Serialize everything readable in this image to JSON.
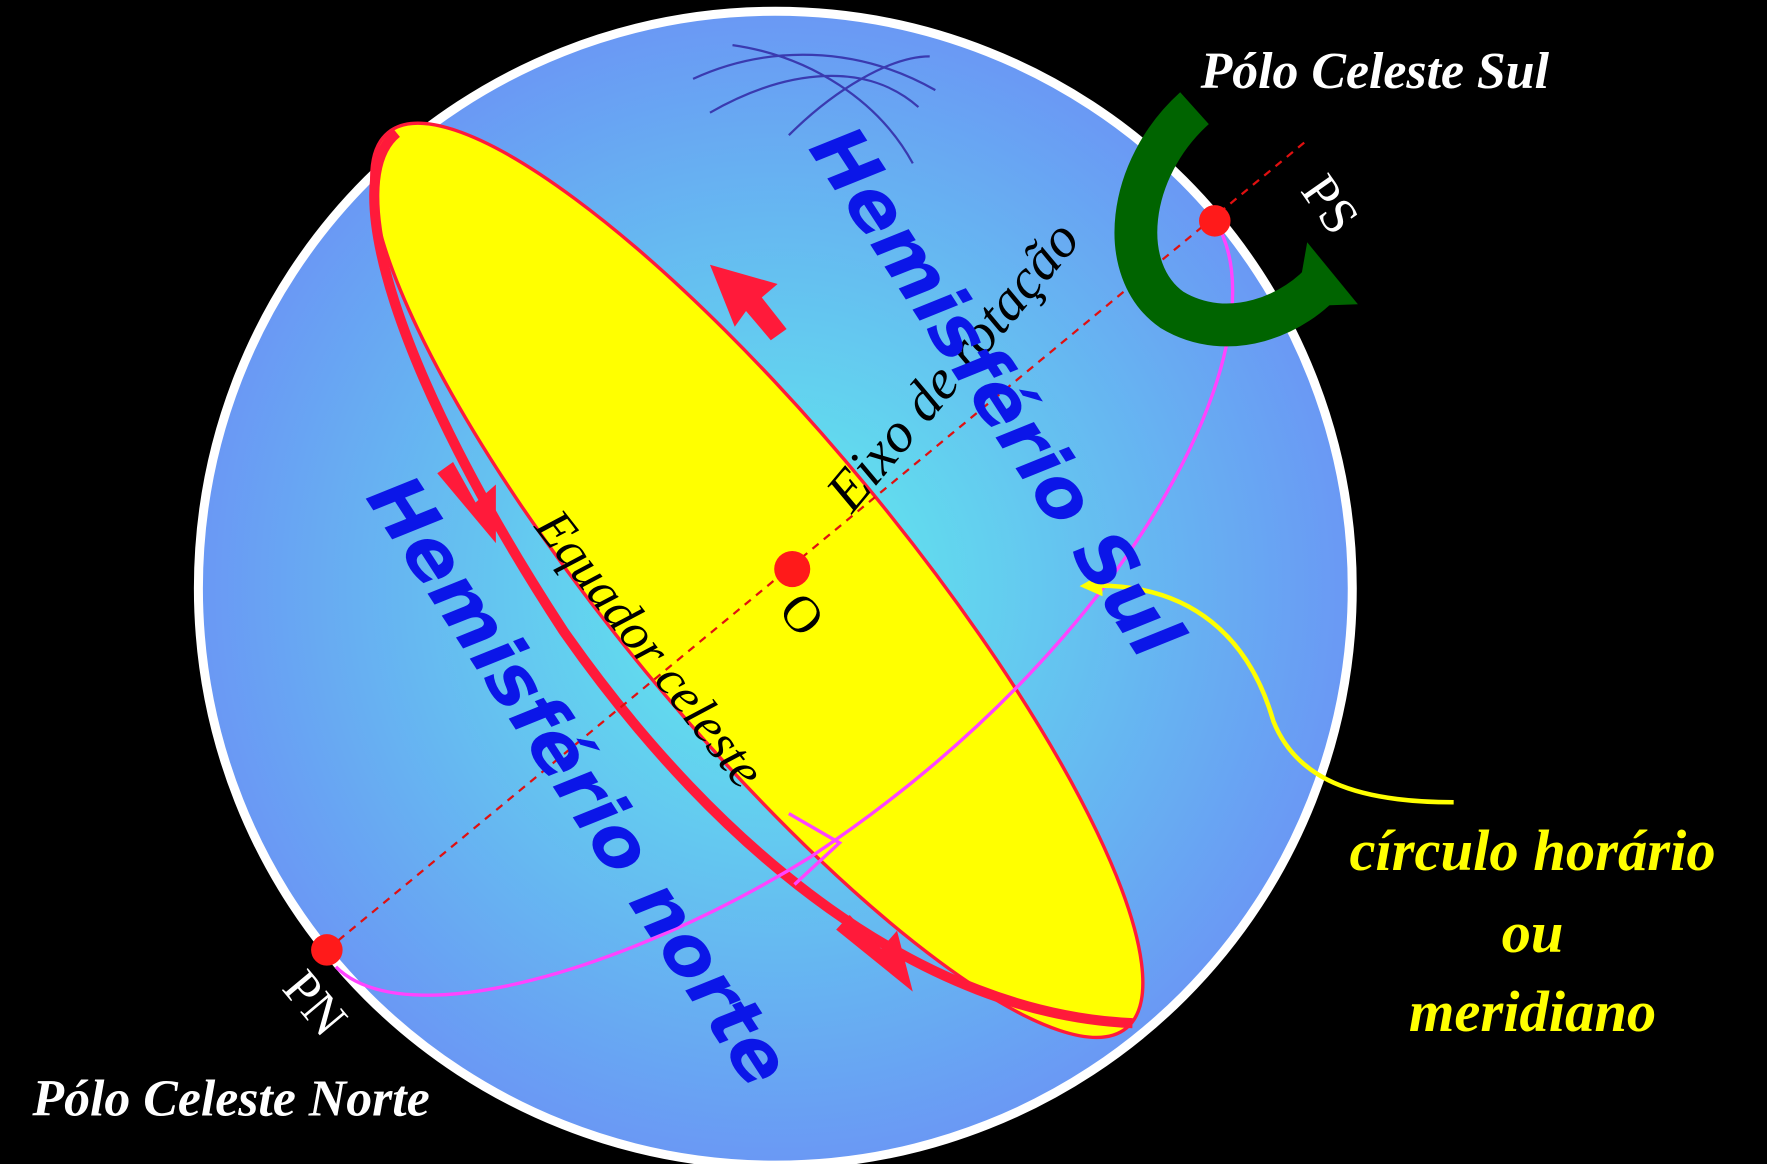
{
  "labels": {
    "south_pole_title": "Pólo Celeste Sul",
    "south_pole": "PS",
    "axis": "Eixo de rotação",
    "south_hemisphere": "Hemisfério Sul",
    "north_hemisphere": "Hemisfério norte",
    "equator": "Equador celeste",
    "center": "O",
    "north_pole": "PN",
    "north_pole_title": "Pólo Celeste Norte",
    "hour_circle_1": "círculo horário",
    "hour_circle_2": "ou",
    "hour_circle_3": "meridiano"
  }
}
